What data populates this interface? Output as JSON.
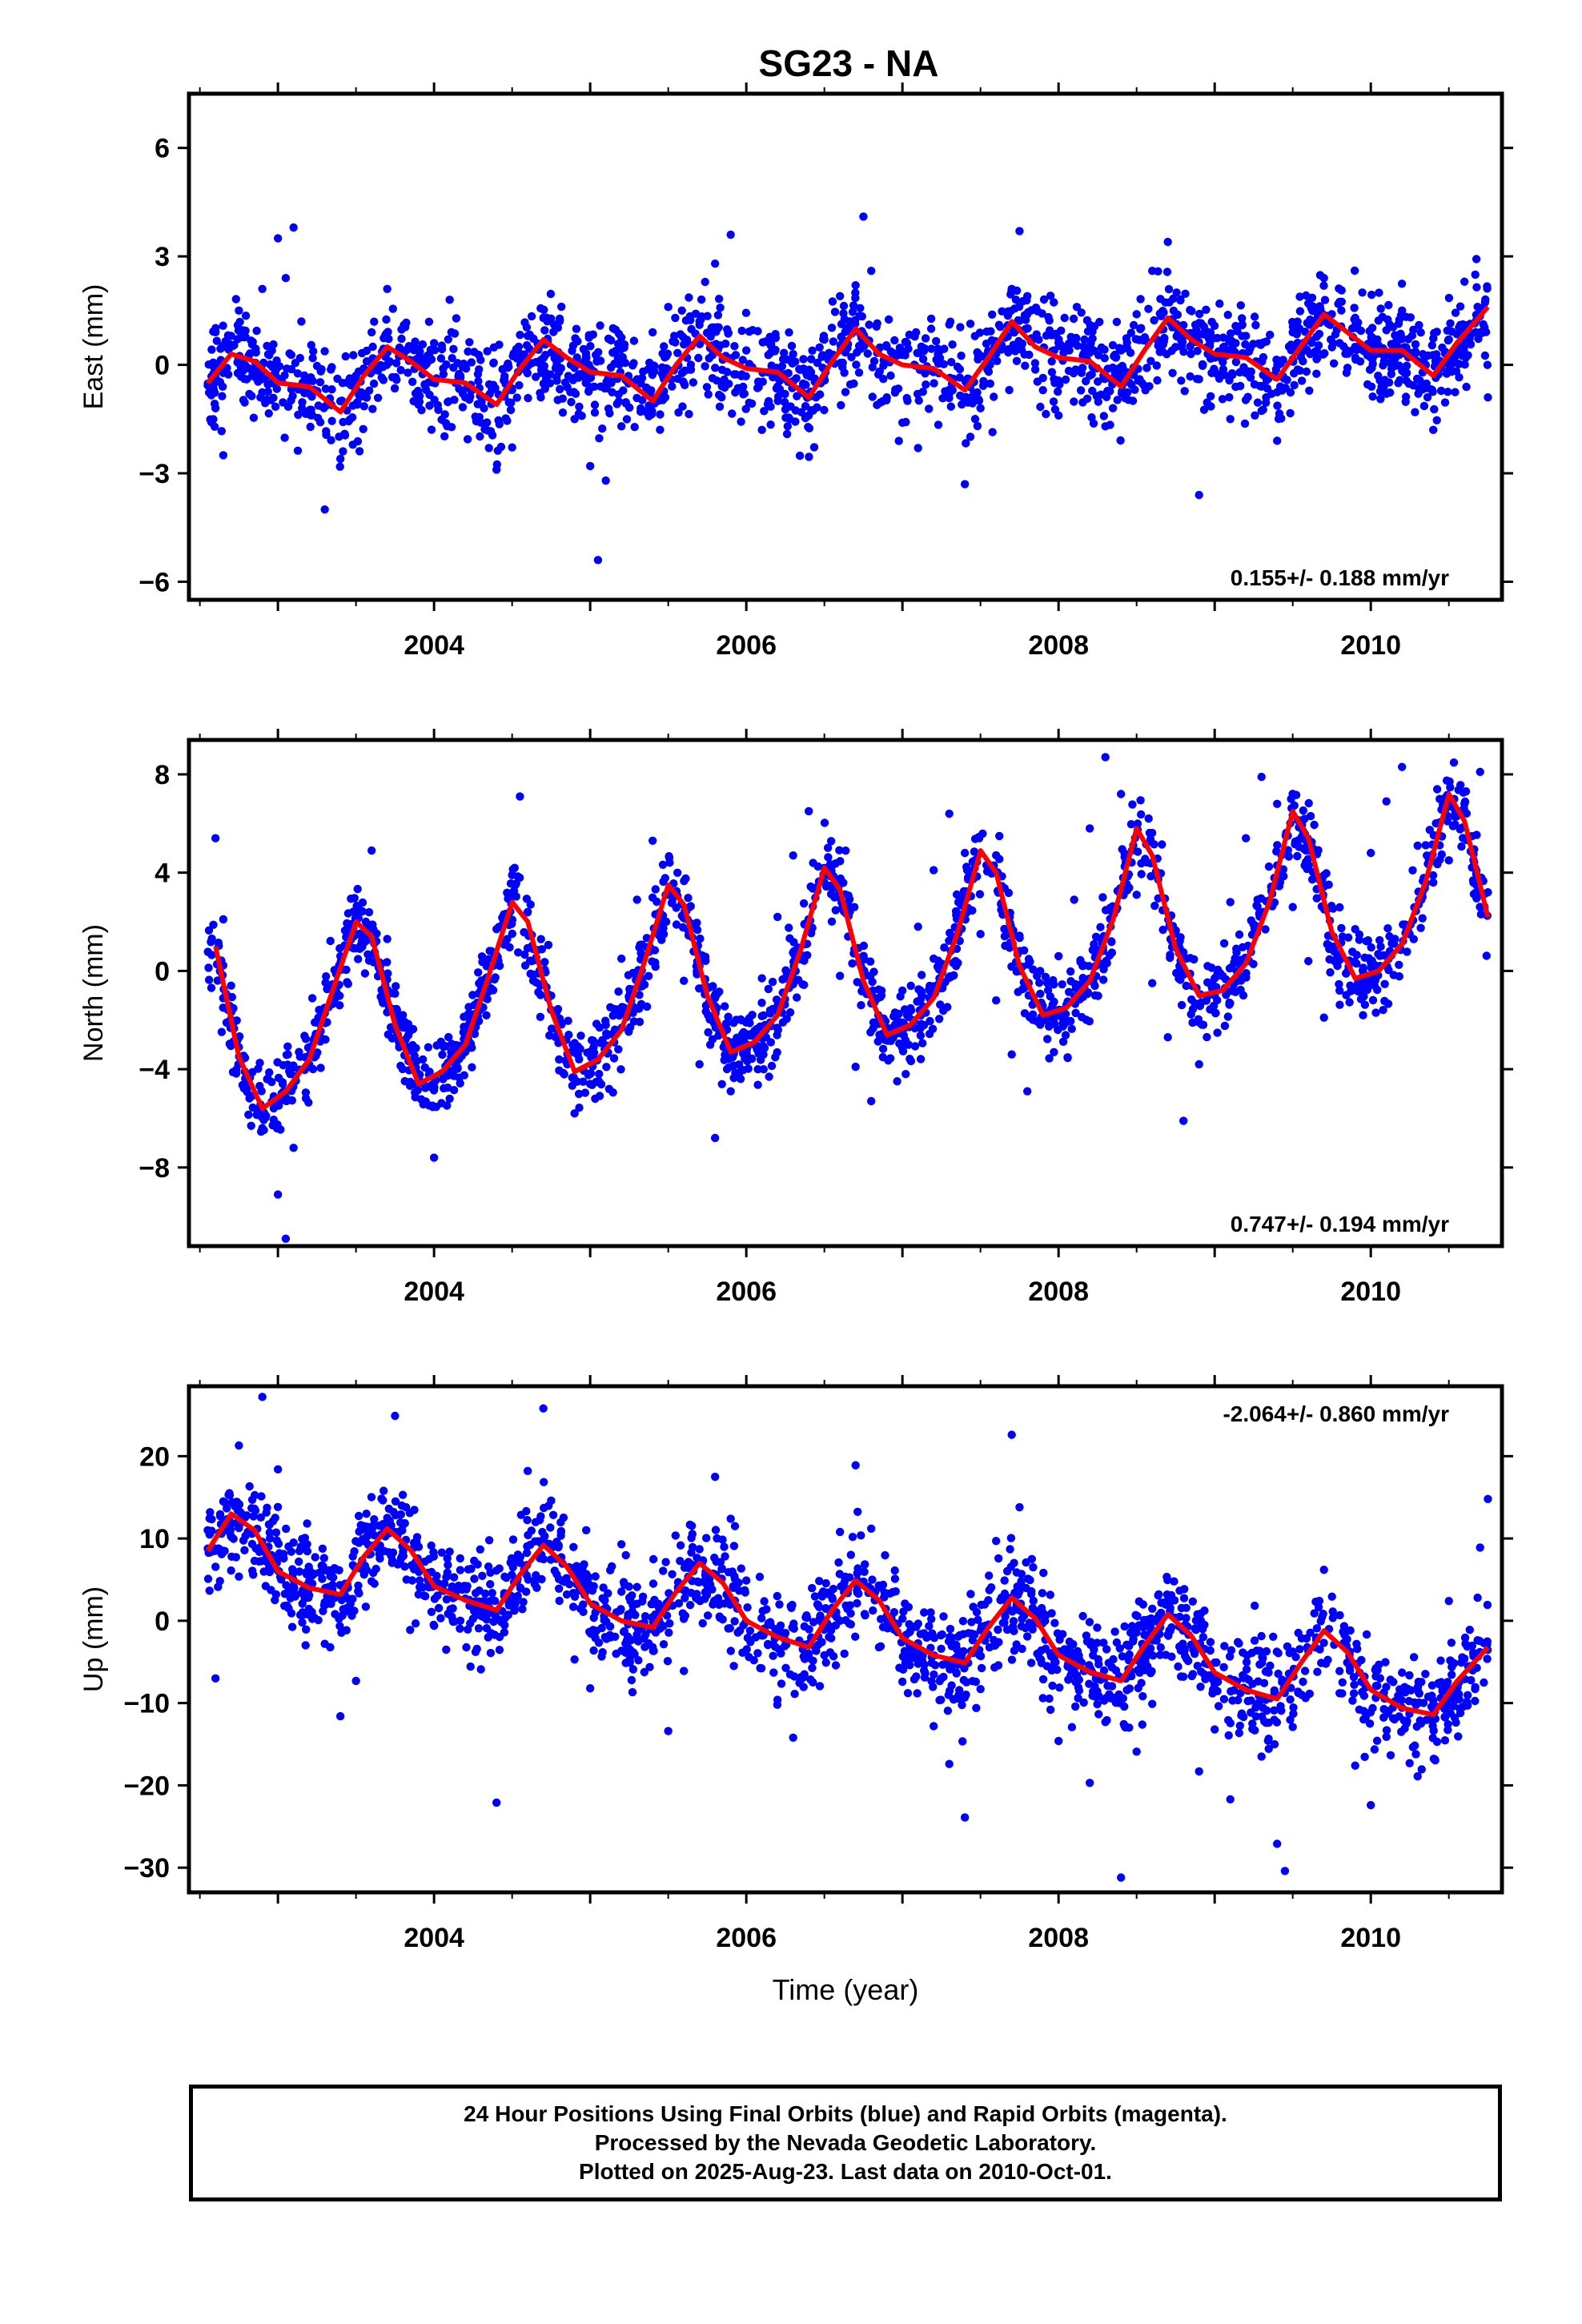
{
  "title": "SG23 - NA",
  "x_axis_label": "Time (year)",
  "footer": {
    "line1": "24 Hour Positions Using Final Orbits (blue) and Rapid Orbits (magenta).",
    "line2": "Processed by the Nevada Geodetic Laboratory.",
    "line3": "Plotted on 2025-Aug-23. Last data on 2010-Oct-01."
  },
  "colors": {
    "points": "#0000ff",
    "model": "#ff0000",
    "axes": "#000000"
  },
  "chart_data": [
    {
      "type": "scatter",
      "title": "SG23 - NA",
      "ylabel": "East (mm)",
      "xlabel": "",
      "xlim": [
        2002.43,
        2010.84
      ],
      "ylim": [
        -6.5,
        7.5
      ],
      "x_ticks": [
        2004,
        2006,
        2008,
        2010
      ],
      "y_ticks": [
        6,
        3,
        0,
        -3,
        -6
      ],
      "rate_label": "0.155+/- 0.188 mm/yr",
      "rate_position": "bottom-right",
      "grid": false,
      "series": [
        {
          "kind": "points",
          "x": [
            2002.6,
            2002.65,
            2002.7,
            2002.75,
            2002.8,
            2002.9,
            2003.0,
            2003.05,
            2003.1,
            2003.15,
            2003.2,
            2003.3,
            2003.4,
            2003.5,
            2003.6,
            2003.7,
            2003.8,
            2003.9,
            2004.0,
            2004.1,
            2004.2,
            2004.3,
            2004.4,
            2004.5,
            2004.6,
            2004.7,
            2004.8,
            2004.9,
            2005.0,
            2005.05,
            2005.1,
            2005.2,
            2005.3,
            2005.4,
            2005.5,
            2005.6,
            2005.7,
            2005.8,
            2005.9,
            2006.0,
            2006.1,
            2006.2,
            2006.3,
            2006.4,
            2006.5,
            2006.6,
            2006.7,
            2006.75,
            2006.8,
            2006.9,
            2007.0,
            2007.1,
            2007.2,
            2007.3,
            2007.4,
            2007.5,
            2007.6,
            2007.7,
            2007.75,
            2007.8,
            2007.9,
            2008.0,
            2008.1,
            2008.2,
            2008.3,
            2008.4,
            2008.5,
            2008.6,
            2008.7,
            2008.8,
            2008.9,
            2009.0,
            2009.1,
            2009.2,
            2009.3,
            2009.4,
            2009.5,
            2009.6,
            2009.7,
            2009.8,
            2009.9,
            2010.0,
            2010.1,
            2010.2,
            2010.3,
            2010.4,
            2010.5,
            2010.6,
            2010.7,
            2010.75
          ],
          "y": [
            -1.2,
            -2.5,
            0.8,
            1.5,
            -0.4,
            2.1,
            3.5,
            2.4,
            3.8,
            1.2,
            -0.8,
            -4.0,
            -2.6,
            -0.3,
            0.9,
            2.1,
            0.4,
            -1.1,
            0.6,
            1.8,
            -0.9,
            -1.6,
            -2.9,
            -0.7,
            0.8,
            1.3,
            -0.2,
            -1.5,
            -2.8,
            -5.4,
            -3.2,
            -1.7,
            -0.4,
            0.9,
            1.6,
            -0.5,
            1.2,
            2.8,
            3.6,
            0.4,
            -1.8,
            -0.6,
            0.3,
            -1.4,
            0.7,
            1.9,
            2.2,
            4.1,
            2.6,
            -0.9,
            -1.6,
            -2.3,
            -0.2,
            -0.8,
            -3.3,
            -1.2,
            0.3,
            2.1,
            3.7,
            1.9,
            -0.7,
            -1.4,
            0.6,
            -0.3,
            -1.7,
            0.4,
            1.4,
            2.6,
            3.4,
            1.1,
            -3.6,
            0.2,
            -1.5,
            0.8,
            -0.6,
            -2.1,
            0.9,
            1.7,
            2.4,
            0.6,
            1.3,
            0.2,
            -0.8,
            1.5,
            0.1,
            -1.8,
            0.7,
            2.3,
            1.4,
            -0.9
          ]
        },
        {
          "kind": "model",
          "x": [
            2002.55,
            2002.7,
            2002.85,
            2003.0,
            2003.2,
            2003.4,
            2003.55,
            2003.7,
            2003.85,
            2004.0,
            2004.2,
            2004.4,
            2004.55,
            2004.7,
            2004.85,
            2005.0,
            2005.2,
            2005.4,
            2005.55,
            2005.7,
            2005.85,
            2006.0,
            2006.2,
            2006.4,
            2006.55,
            2006.7,
            2006.85,
            2007.0,
            2007.2,
            2007.4,
            2007.55,
            2007.7,
            2007.85,
            2008.0,
            2008.2,
            2008.4,
            2008.55,
            2008.7,
            2008.85,
            2009.0,
            2009.2,
            2009.4,
            2009.55,
            2009.7,
            2009.85,
            2010.0,
            2010.2,
            2010.4,
            2010.55,
            2010.75
          ],
          "y": [
            -0.5,
            0.3,
            0.1,
            -0.5,
            -0.6,
            -1.3,
            -0.3,
            0.5,
            0.1,
            -0.4,
            -0.5,
            -1.1,
            -0.1,
            0.7,
            0.2,
            -0.2,
            -0.3,
            -1.0,
            0.0,
            0.8,
            0.2,
            -0.1,
            -0.2,
            -0.9,
            0.1,
            1.0,
            0.3,
            0.0,
            -0.1,
            -0.7,
            0.2,
            1.2,
            0.5,
            0.2,
            0.1,
            -0.6,
            0.4,
            1.3,
            0.7,
            0.3,
            0.2,
            -0.4,
            0.5,
            1.4,
            0.9,
            0.4,
            0.4,
            -0.3,
            0.6,
            1.6
          ]
        }
      ]
    },
    {
      "type": "scatter",
      "ylabel": "North (mm)",
      "xlabel": "",
      "xlim": [
        2002.43,
        2010.84
      ],
      "ylim": [
        -11.2,
        9.4
      ],
      "x_ticks": [
        2004,
        2006,
        2008,
        2010
      ],
      "y_ticks": [
        8,
        4,
        0,
        -4,
        -8
      ],
      "rate_label": "0.747+/- 0.194 mm/yr",
      "rate_position": "bottom-right",
      "grid": false,
      "series": [
        {
          "kind": "points",
          "x": [
            2002.6,
            2002.65,
            2002.7,
            2002.75,
            2002.8,
            2002.9,
            2003.0,
            2003.05,
            2003.1,
            2003.2,
            2003.3,
            2003.4,
            2003.5,
            2003.6,
            2003.7,
            2003.8,
            2003.9,
            2004.0,
            2004.1,
            2004.2,
            2004.3,
            2004.4,
            2004.5,
            2004.55,
            2004.6,
            2004.7,
            2004.8,
            2004.9,
            2005.0,
            2005.1,
            2005.2,
            2005.3,
            2005.4,
            2005.5,
            2005.6,
            2005.7,
            2005.8,
            2005.9,
            2006.0,
            2006.1,
            2006.2,
            2006.3,
            2006.4,
            2006.5,
            2006.6,
            2006.7,
            2006.8,
            2006.9,
            2007.0,
            2007.1,
            2007.2,
            2007.3,
            2007.4,
            2007.5,
            2007.6,
            2007.7,
            2007.8,
            2007.9,
            2008.0,
            2008.1,
            2008.2,
            2008.3,
            2008.4,
            2008.5,
            2008.6,
            2008.7,
            2008.8,
            2008.9,
            2009.0,
            2009.1,
            2009.2,
            2009.3,
            2009.4,
            2009.5,
            2009.6,
            2009.7,
            2009.8,
            2009.9,
            2010.0,
            2010.1,
            2010.2,
            2010.3,
            2010.4,
            2010.5,
            2010.6,
            2010.7,
            2010.75
          ],
          "y": [
            5.4,
            2.1,
            -0.6,
            -3.1,
            -4.8,
            -6.4,
            -9.1,
            -10.9,
            -7.2,
            -3.8,
            -1.5,
            0.6,
            2.4,
            4.9,
            1.3,
            -1.8,
            -4.3,
            -7.6,
            -5.2,
            -3.3,
            -0.8,
            1.7,
            3.9,
            7.1,
            2.4,
            -0.5,
            -2.9,
            -5.8,
            -4.6,
            -2.2,
            0.5,
            2.9,
            5.3,
            3.1,
            -0.4,
            -3.8,
            -6.8,
            -4.9,
            -2.1,
            -0.3,
            2.2,
            4.7,
            6.5,
            3.6,
            -0.2,
            -3.9,
            -5.3,
            -2.7,
            -0.8,
            1.8,
            4.1,
            6.4,
            4.8,
            1.5,
            -1.2,
            -3.4,
            -4.9,
            -1.8,
            0.6,
            2.9,
            5.8,
            8.7,
            7.2,
            3.1,
            -0.5,
            -2.7,
            -6.1,
            -3.8,
            -0.3,
            2.8,
            5.4,
            7.9,
            6.8,
            2.6,
            0.4,
            -1.9,
            -0.8,
            1.7,
            4.8,
            6.9,
            8.3,
            5.1,
            3.6,
            4.5,
            6.8,
            8.1,
            3.2
          ]
        },
        {
          "kind": "model",
          "x": [
            2002.6,
            2002.75,
            2002.9,
            2003.05,
            2003.2,
            2003.35,
            2003.5,
            2003.6,
            2003.75,
            2003.9,
            2004.05,
            2004.2,
            2004.35,
            2004.5,
            2004.6,
            2004.75,
            2004.9,
            2005.05,
            2005.2,
            2005.35,
            2005.5,
            2005.6,
            2005.75,
            2005.9,
            2006.05,
            2006.2,
            2006.35,
            2006.5,
            2006.6,
            2006.75,
            2006.9,
            2007.05,
            2007.2,
            2007.35,
            2007.5,
            2007.6,
            2007.75,
            2007.9,
            2008.05,
            2008.2,
            2008.35,
            2008.5,
            2008.6,
            2008.75,
            2008.9,
            2009.05,
            2009.2,
            2009.35,
            2009.5,
            2009.6,
            2009.75,
            2009.9,
            2010.05,
            2010.2,
            2010.35,
            2010.5,
            2010.6,
            2010.75
          ],
          "y": [
            1.0,
            -3.5,
            -5.6,
            -4.9,
            -3.6,
            -0.8,
            2.0,
            1.4,
            -2.2,
            -4.6,
            -4.1,
            -3.0,
            -0.2,
            2.8,
            2.0,
            -1.6,
            -4.1,
            -3.6,
            -2.4,
            0.4,
            3.5,
            2.7,
            -1.0,
            -3.3,
            -2.9,
            -1.8,
            0.9,
            4.2,
            3.3,
            -0.4,
            -2.6,
            -2.2,
            -1.1,
            1.5,
            4.9,
            4.0,
            0.2,
            -1.8,
            -1.5,
            -0.4,
            2.1,
            5.8,
            4.7,
            0.9,
            -1.0,
            -0.8,
            0.3,
            2.8,
            6.5,
            5.4,
            1.6,
            -0.3,
            0.0,
            1.1,
            3.6,
            7.2,
            6.1,
            2.2
          ]
        }
      ]
    },
    {
      "type": "scatter",
      "ylabel": "Up (mm)",
      "xlabel": "Time (year)",
      "xlim": [
        2002.43,
        2010.84
      ],
      "ylim": [
        -33,
        28.5
      ],
      "x_ticks": [
        2004,
        2006,
        2008,
        2010
      ],
      "y_ticks": [
        20,
        10,
        0,
        -10,
        -20,
        -30
      ],
      "rate_label": "-2.064+/- 0.860 mm/yr",
      "rate_position": "top-right",
      "grid": false,
      "series": [
        {
          "kind": "points",
          "x": [
            2002.6,
            2002.65,
            2002.7,
            2002.75,
            2002.8,
            2002.9,
            2003.0,
            2003.1,
            2003.2,
            2003.3,
            2003.4,
            2003.5,
            2003.6,
            2003.7,
            2003.75,
            2003.8,
            2003.9,
            2004.0,
            2004.1,
            2004.2,
            2004.3,
            2004.4,
            2004.45,
            2004.5,
            2004.6,
            2004.7,
            2004.75,
            2004.8,
            2004.9,
            2005.0,
            2005.1,
            2005.2,
            2005.3,
            2005.4,
            2005.5,
            2005.6,
            2005.7,
            2005.8,
            2005.9,
            2006.0,
            2006.1,
            2006.2,
            2006.3,
            2006.4,
            2006.5,
            2006.6,
            2006.7,
            2006.8,
            2006.9,
            2007.0,
            2007.1,
            2007.2,
            2007.3,
            2007.4,
            2007.5,
            2007.55,
            2007.6,
            2007.7,
            2007.75,
            2007.8,
            2007.9,
            2008.0,
            2008.1,
            2008.2,
            2008.3,
            2008.4,
            2008.45,
            2008.5,
            2008.6,
            2008.7,
            2008.8,
            2008.9,
            2009.0,
            2009.1,
            2009.2,
            2009.3,
            2009.4,
            2009.45,
            2009.5,
            2009.6,
            2009.7,
            2009.8,
            2009.9,
            2010.0,
            2010.1,
            2010.2,
            2010.3,
            2010.4,
            2010.5,
            2010.6,
            2010.7,
            2010.75
          ],
          "y": [
            -7.0,
            14.5,
            6.1,
            21.3,
            12.8,
            27.2,
            18.4,
            9.5,
            3.1,
            -2.8,
            -11.6,
            -7.3,
            4.8,
            12.5,
            24.9,
            15.3,
            6.9,
            -0.6,
            8.4,
            2.7,
            -5.9,
            -22.1,
            -1.4,
            7.3,
            18.2,
            25.8,
            14.6,
            3.9,
            -4.7,
            -8.2,
            1.6,
            9.3,
            4.1,
            -3.2,
            -13.4,
            -6.1,
            8.7,
            17.5,
            12.4,
            4.9,
            -1.8,
            -9.6,
            -14.2,
            -4.5,
            3.4,
            10.8,
            18.9,
            11.2,
            0.6,
            -7.4,
            -3.9,
            -12.8,
            -17.4,
            -23.9,
            -8.3,
            2.5,
            9.7,
            22.6,
            13.8,
            -1.9,
            -9.4,
            -14.6,
            -6.2,
            -19.7,
            -12.3,
            -31.2,
            -4.8,
            -15.9,
            -10.1,
            -1.7,
            -6.8,
            -18.3,
            -13.2,
            -21.7,
            -8.4,
            -16.5,
            -27.1,
            -30.4,
            -12.9,
            -3.7,
            6.2,
            -8.8,
            -17.6,
            -22.4,
            -14.1,
            -6.3,
            -18.9,
            -9.7,
            2.4,
            -4.6,
            8.9,
            14.8
          ]
        },
        {
          "kind": "model",
          "x": [
            2002.55,
            2002.7,
            2002.85,
            2003.0,
            2003.2,
            2003.4,
            2003.55,
            2003.7,
            2003.85,
            2004.0,
            2004.2,
            2004.4,
            2004.55,
            2004.7,
            2004.85,
            2005.0,
            2005.2,
            2005.4,
            2005.55,
            2005.7,
            2005.85,
            2006.0,
            2006.2,
            2006.4,
            2006.55,
            2006.7,
            2006.85,
            2007.0,
            2007.2,
            2007.4,
            2007.55,
            2007.7,
            2007.85,
            2008.0,
            2008.2,
            2008.4,
            2008.55,
            2008.7,
            2008.85,
            2009.0,
            2009.2,
            2009.4,
            2009.55,
            2009.7,
            2009.85,
            2010.0,
            2010.2,
            2010.4,
            2010.55,
            2010.75
          ],
          "y": [
            8.5,
            13.0,
            11.0,
            6.0,
            4.0,
            3.2,
            7.8,
            11.2,
            8.6,
            4.2,
            2.5,
            1.3,
            5.6,
            9.2,
            6.6,
            2.1,
            0.0,
            -0.8,
            3.5,
            7.0,
            4.6,
            0.0,
            -2.0,
            -3.2,
            1.3,
            4.9,
            2.5,
            -2.1,
            -4.2,
            -5.1,
            -0.8,
            2.8,
            0.3,
            -4.2,
            -6.2,
            -7.3,
            -3.0,
            0.8,
            -1.8,
            -6.3,
            -8.4,
            -9.5,
            -5.2,
            -1.2,
            -3.8,
            -8.4,
            -10.6,
            -11.4,
            -7.4,
            -3.2
          ]
        }
      ]
    }
  ]
}
